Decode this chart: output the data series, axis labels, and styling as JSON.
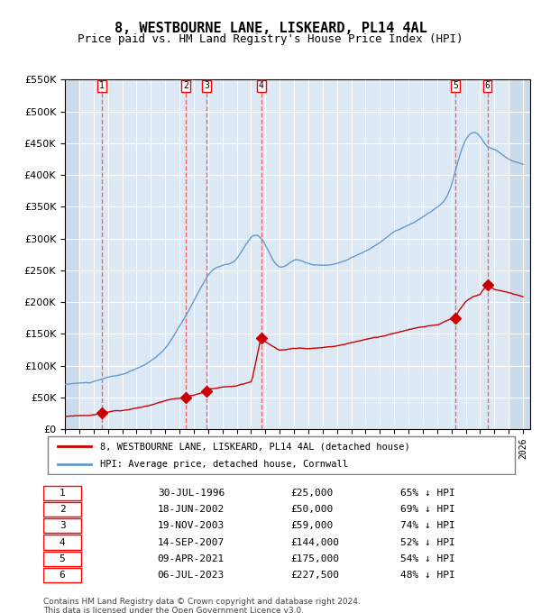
{
  "title": "8, WESTBOURNE LANE, LISKEARD, PL14 4AL",
  "subtitle": "Price paid vs. HM Land Registry's House Price Index (HPI)",
  "legend_line1": "8, WESTBOURNE LANE, LISKEARD, PL14 4AL (detached house)",
  "legend_line2": "HPI: Average price, detached house, Cornwall",
  "footer1": "Contains HM Land Registry data © Crown copyright and database right 2024.",
  "footer2": "This data is licensed under the Open Government Licence v3.0.",
  "sale_dates": [
    "1996-07-30",
    "2002-06-18",
    "2003-11-19",
    "2007-09-14",
    "2021-04-09",
    "2023-07-06"
  ],
  "sale_prices": [
    25000,
    50000,
    59000,
    144000,
    175000,
    227500
  ],
  "sale_labels": [
    "1",
    "2",
    "3",
    "4",
    "5",
    "6"
  ],
  "sale_table": [
    [
      "1",
      "30-JUL-1996",
      "£25,000",
      "65% ↓ HPI"
    ],
    [
      "2",
      "18-JUN-2002",
      "£50,000",
      "69% ↓ HPI"
    ],
    [
      "3",
      "19-NOV-2003",
      "£59,000",
      "74% ↓ HPI"
    ],
    [
      "4",
      "14-SEP-2007",
      "£144,000",
      "52% ↓ HPI"
    ],
    [
      "5",
      "09-APR-2021",
      "£175,000",
      "54% ↓ HPI"
    ],
    [
      "6",
      "06-JUL-2023",
      "£227,500",
      "48% ↓ HPI"
    ]
  ],
  "hpi_color": "#6699cc",
  "price_color": "#cc0000",
  "bg_color": "#dce9f5",
  "hatch_color": "#c0d0e8",
  "grid_color": "#ffffff",
  "dashed_line_color": "#ff4444",
  "ylim": [
    0,
    550000
  ],
  "yticks": [
    0,
    50000,
    100000,
    150000,
    200000,
    250000,
    300000,
    350000,
    400000,
    450000,
    500000,
    550000
  ],
  "xlim_start": 1994.0,
  "xlim_end": 2026.5
}
